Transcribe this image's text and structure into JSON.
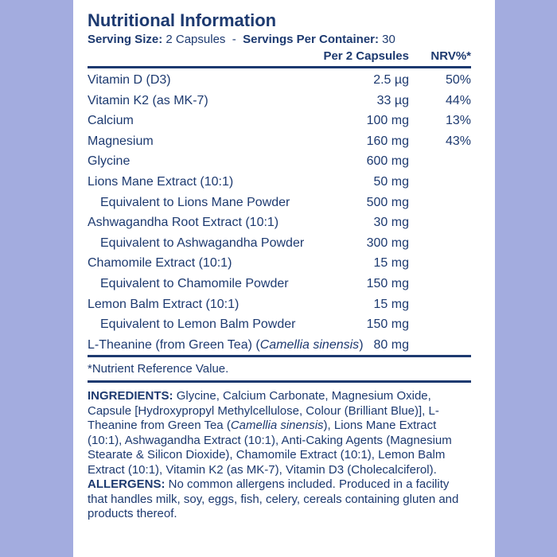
{
  "title": "Nutritional Information",
  "serving": {
    "size_label": "Serving Size:",
    "size_value": "2 Capsules",
    "separator": "-",
    "per_container_label": "Servings Per Container:",
    "per_container_value": "30"
  },
  "table": {
    "headers": [
      "Per 2 Capsules",
      "NRV%*"
    ],
    "rows": [
      {
        "name": "Vitamin D (D3)",
        "amount": "2.5 µg",
        "nrv": "50%"
      },
      {
        "name": "Vitamin K2 (as MK-7)",
        "amount": "33 µg",
        "nrv": "44%"
      },
      {
        "name": "Calcium",
        "amount": "100 mg",
        "nrv": "13%"
      },
      {
        "name": "Magnesium",
        "amount": "160 mg",
        "nrv": "43%"
      },
      {
        "name": "Glycine",
        "amount": "600 mg"
      },
      {
        "name": "Lions Mane Extract (10:1)",
        "amount": "50 mg"
      },
      {
        "name": "Equivalent to Lions Mane Powder",
        "amount": "500 mg",
        "indent": true
      },
      {
        "name": "Ashwagandha Root Extract (10:1)",
        "amount": "30 mg"
      },
      {
        "name": "Equivalent to Ashwagandha Powder",
        "amount": "300 mg",
        "indent": true
      },
      {
        "name": "Chamomile Extract (10:1)",
        "amount": "15 mg"
      },
      {
        "name": "Equivalent to Chamomile Powder",
        "amount": "150 mg",
        "indent": true
      },
      {
        "name": "Lemon Balm Extract (10:1)",
        "amount": "15 mg"
      },
      {
        "name": "Equivalent to Lemon Balm Powder",
        "amount": "150 mg",
        "indent": true
      },
      {
        "name": "L-Theanine (from Green Tea) (",
        "name_italic": "Camellia sinensis",
        "name_end": ")",
        "amount": "80 mg"
      }
    ]
  },
  "footnote": "*Nutrient Reference Value.",
  "ingredients": {
    "label": "INGREDIENTS:",
    "text_1": "Glycine, Calcium Carbonate, Magnesium Oxide, Capsule [Hydroxypropyl Methylcellulose, Colour (Brilliant Blue)], L-Theanine from Green Tea (",
    "italic": "Camellia sinensis",
    "text_2": "), Lions Mane Extract (10:1), Ashwagandha Extract (10:1), Anti-Caking Agents (Magnesium Stearate & Silicon Dioxide), Chamomile Extract (10:1), Lemon Balm Extract (10:1), Vitamin K2 (as MK-7), Vitamin D3 (Cholecalciferol)."
  },
  "allergens": {
    "label": "ALLERGENS:",
    "text": "No common allergens included. Produced in a facility that handles milk, soy, eggs, fish, celery, cereals containing gluten and products thereof."
  }
}
